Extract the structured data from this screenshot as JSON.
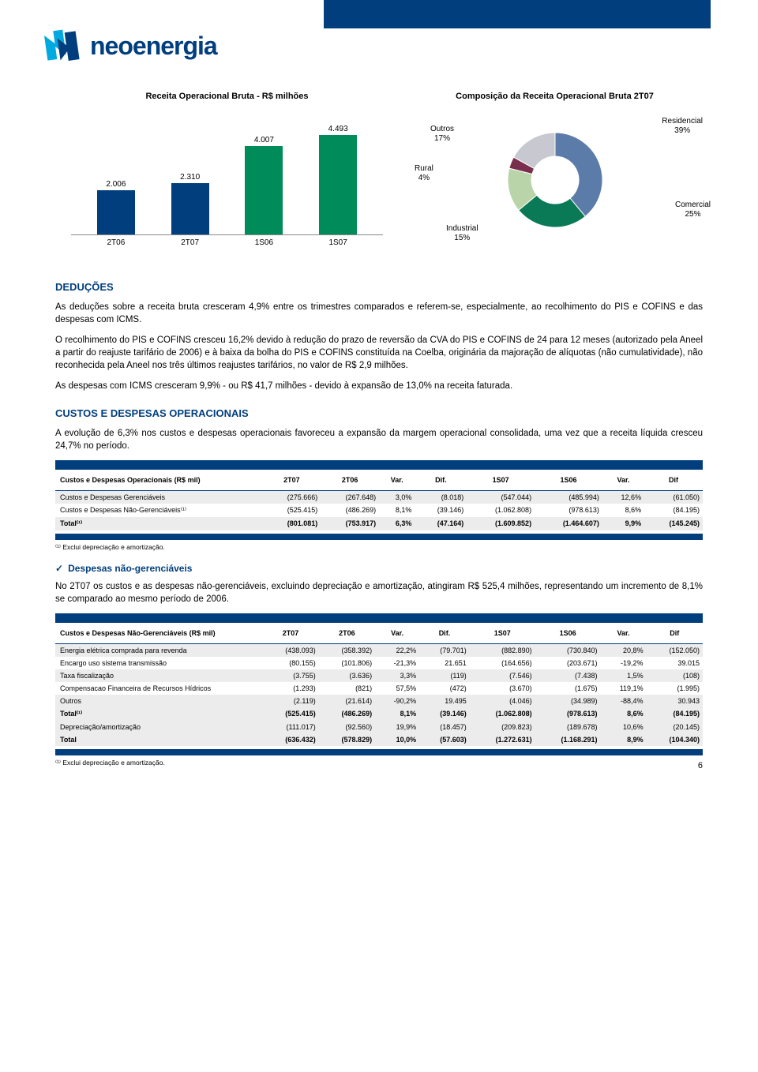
{
  "brand": {
    "name": "neoenergia",
    "color": "#003e7e"
  },
  "bar_chart": {
    "title": "Receita Operacional Bruta - R$ milhões",
    "categories": [
      "2T06",
      "2T07",
      "1S06",
      "1S07"
    ],
    "values": [
      2.006,
      2.31,
      4.007,
      4.493
    ],
    "labels": [
      "2.006",
      "2.310",
      "4.007",
      "4.493"
    ],
    "colors": [
      "#003e7e",
      "#003e7e",
      "#008c5a",
      "#008c5a"
    ],
    "max": 5.0
  },
  "pie_chart": {
    "title": "Composição da Receita Operacional Bruta 2T07",
    "slices": [
      {
        "name": "Residencial",
        "label": "Residencial\n39%",
        "value": 39,
        "color": "#5b7ca8"
      },
      {
        "name": "Comercial",
        "label": "Comercial\n25%",
        "value": 25,
        "color": "#0a7a56"
      },
      {
        "name": "Industrial",
        "label": "Industrial\n15%",
        "value": 15,
        "color": "#b8d4a8"
      },
      {
        "name": "Rural",
        "label": "Rural\n4%",
        "value": 4,
        "color": "#7a2e4e"
      },
      {
        "name": "Outros",
        "label": "Outros\n17%",
        "value": 17,
        "color": "#c8c8d0"
      }
    ]
  },
  "sections": {
    "deducoes": {
      "heading": "DEDUÇÕES",
      "p1": "As deduções sobre a receita bruta cresceram 4,9% entre os trimestres comparados e referem-se, especialmente, ao recolhimento do PIS e COFINS e das despesas com ICMS.",
      "p2": "O recolhimento do PIS e COFINS cresceu 16,2% devido à redução do prazo de reversão da CVA do PIS e COFINS de 24 para 12 meses (autorizado pela Aneel a partir do reajuste tarifário de 2006) e à baixa da bolha do PIS e COFINS constituída na Coelba, originária da majoração de alíquotas (não cumulatividade), não reconhecida pela Aneel nos três últimos reajustes tarifários, no valor de R$ 2,9 milhões.",
      "p3": "As despesas com ICMS cresceram 9,9% - ou R$ 41,7 milhões - devido à expansão de 13,0% na receita faturada."
    },
    "custos": {
      "heading": "CUSTOS E DESPESAS OPERACIONAIS",
      "p1": "A evolução de 6,3% nos custos e despesas operacionais favoreceu a expansão da margem operacional consolidada, uma vez que a receita líquida cresceu 24,7% no período."
    },
    "nao_ger": {
      "heading": "Despesas não-gerenciáveis",
      "p1": "No 2T07 os custos e as despesas não-gerenciáveis, excluindo depreciação e amortização, atingiram R$ 525,4 milhões, representando um incremento de 8,1% se comparado ao mesmo período de 2006."
    }
  },
  "table1": {
    "caption": "Custos e Despesas Operacionais (R$ mil)",
    "headers": [
      "2T07",
      "2T06",
      "Var.",
      "Dif.",
      "1S07",
      "1S06",
      "Var.",
      "Dif"
    ],
    "rows": [
      {
        "label": "Custos e Despesas Gerenciáveis",
        "cells": [
          "(275.666)",
          "(267.648)",
          "3,0%",
          "(8.018)",
          "(547.044)",
          "(485.994)",
          "12,6%",
          "(61.050)"
        ]
      },
      {
        "label": "Custos e Despesas Não-Gerenciáveis⁽¹⁾",
        "cells": [
          "(525.415)",
          "(486.269)",
          "8,1%",
          "(39.146)",
          "(1.062.808)",
          "(978.613)",
          "8,6%",
          "(84.195)"
        ]
      },
      {
        "label": "Total⁽¹⁾",
        "cells": [
          "(801.081)",
          "(753.917)",
          "6,3%",
          "(47.164)",
          "(1.609.852)",
          "(1.464.607)",
          "9,9%",
          "(145.245)"
        ],
        "total": true
      }
    ]
  },
  "table2": {
    "caption": "Custos e Despesas Não-Gerenciáveis (R$ mil)",
    "headers": [
      "2T07",
      "2T06",
      "Var.",
      "Dif.",
      "1S07",
      "1S06",
      "Var.",
      "Dif"
    ],
    "rows": [
      {
        "label": "Energia elétrica comprada para revenda",
        "cells": [
          "(438.093)",
          "(358.392)",
          "22,2%",
          "(79.701)",
          "(882.890)",
          "(730.840)",
          "20,8%",
          "(152.050)"
        ]
      },
      {
        "label": "Encargo uso sistema transmissão",
        "cells": [
          "(80.155)",
          "(101.806)",
          "-21,3%",
          "21.651",
          "(164.656)",
          "(203.671)",
          "-19,2%",
          "39.015"
        ]
      },
      {
        "label": "Taxa fiscalização",
        "cells": [
          "(3.755)",
          "(3.636)",
          "3,3%",
          "(119)",
          "(7.546)",
          "(7.438)",
          "1,5%",
          "(108)"
        ]
      },
      {
        "label": "Compensacao Financeira de Recursos Hídricos",
        "cells": [
          "(1.293)",
          "(821)",
          "57,5%",
          "(472)",
          "(3.670)",
          "(1.675)",
          "119,1%",
          "(1.995)"
        ]
      },
      {
        "label": "Outros",
        "cells": [
          "(2.119)",
          "(21.614)",
          "-90,2%",
          "19.495",
          "(4.046)",
          "(34.989)",
          "-88,4%",
          "30.943"
        ]
      },
      {
        "label": "Total⁽¹⁾",
        "cells": [
          "(525.415)",
          "(486.269)",
          "8,1%",
          "(39.146)",
          "(1.062.808)",
          "(978.613)",
          "8,6%",
          "(84.195)"
        ],
        "total": true
      },
      {
        "label": "Depreciação/amortização",
        "cells": [
          "(111.017)",
          "(92.560)",
          "19,9%",
          "(18.457)",
          "(209.823)",
          "(189.678)",
          "10,6%",
          "(20.145)"
        ]
      },
      {
        "label": "Total",
        "cells": [
          "(636.432)",
          "(578.829)",
          "10,0%",
          "(57.603)",
          "(1.272.631)",
          "(1.168.291)",
          "8,9%",
          "(104.340)"
        ],
        "total": true
      }
    ]
  },
  "footnote": "⁽¹⁾ Exclui depreciação e amortização.",
  "page_number": "6"
}
